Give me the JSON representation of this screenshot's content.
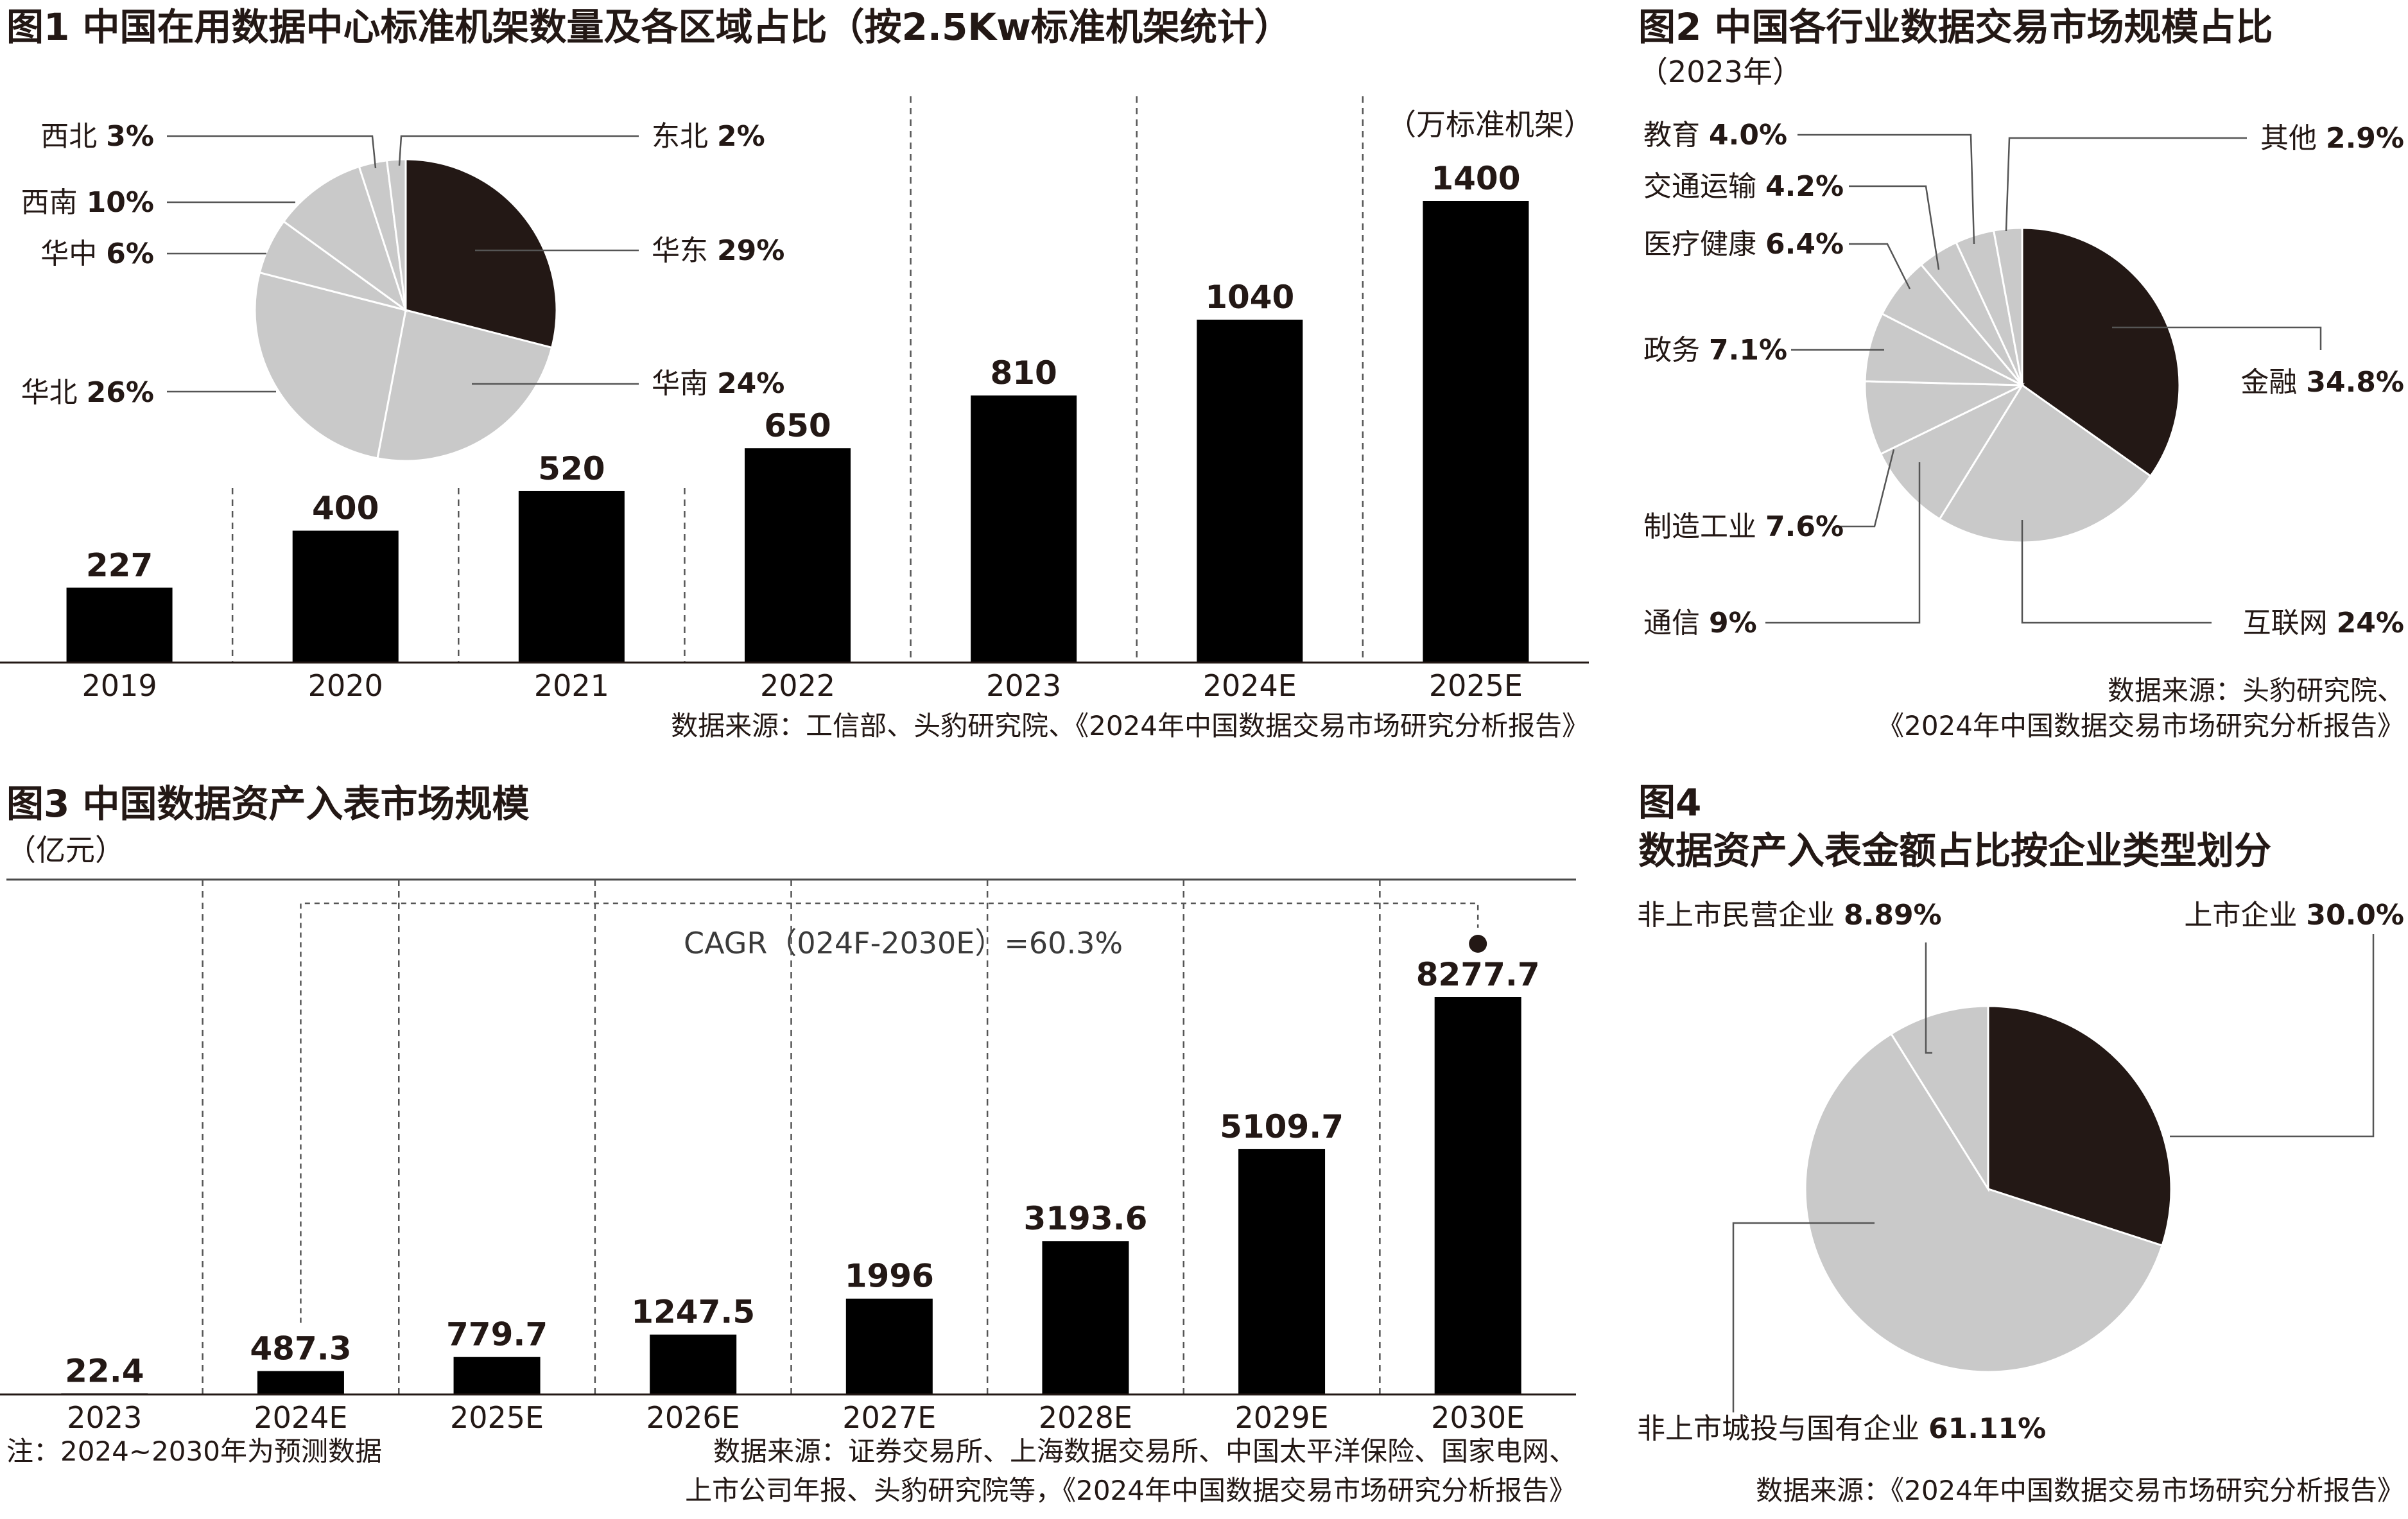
{
  "colors": {
    "dark": "#231815",
    "light": "#c9c9c9",
    "bar": "#000000",
    "line": "#4a4a4a"
  },
  "fig1": {
    "title": "图1 中国在用数据中心标准机架数量及各区域占比（按2.5Kw标准机架统计）",
    "unit": "（万标准机架）",
    "source": "数据来源：工信部、头豹研究院、《2024年中国数据交易市场研究分析报告》"
  },
  "fig2": {
    "title": "图2 中国各行业数据交易市场规模占比",
    "subtitle": "（2023年）",
    "source_line1": "数据来源：头豹研究院、",
    "source_line2": "《2024年中国数据交易市场研究分析报告》"
  },
  "fig3": {
    "title": "图3 中国数据资产入表市场规模",
    "unit": "（亿元）",
    "cagr": "CAGR（024F-2030E）=60.3%",
    "note": "注：2024~2030年为预测数据",
    "source_line1": "数据来源：证券交易所、上海数据交易所、中国太平洋保险、国家电网、",
    "source_line2": "上市公司年报、头豹研究院等，《2024年中国数据交易市场研究分析报告》"
  },
  "fig4": {
    "title_line1": "图4",
    "title_line2": "数据资产入表金额占比按企业类型划分",
    "source": "数据来源：《2024年中国数据交易市场研究分析报告》"
  },
  "chart_data": [
    {
      "type": "bar",
      "title": "图1 中国在用数据中心标准机架数量及各区域占比（按2.5Kw标准机架统计）",
      "ylabel": "（万标准机架）",
      "categories": [
        "2019",
        "2020",
        "2021",
        "2022",
        "2023",
        "2024E",
        "2025E"
      ],
      "values": [
        227,
        400,
        520,
        650,
        810,
        1040,
        1400
      ],
      "labels": [
        "227",
        "400",
        "520",
        "650",
        "810",
        "1040",
        "1400"
      ],
      "ylim": [
        0,
        1400
      ]
    },
    {
      "type": "pie",
      "slices": [
        {
          "name": "华东",
          "pct": "29%",
          "value": 29,
          "color": "dark"
        },
        {
          "name": "华南",
          "pct": "24%",
          "value": 24,
          "color": "light"
        },
        {
          "name": "华北",
          "pct": "26%",
          "value": 26,
          "color": "light"
        },
        {
          "name": "华中",
          "pct": "6%",
          "value": 6,
          "color": "light"
        },
        {
          "name": "西南",
          "pct": "10%",
          "value": 10,
          "color": "light"
        },
        {
          "name": "西北",
          "pct": "3%",
          "value": 3,
          "color": "light"
        },
        {
          "name": "东北",
          "pct": "2%",
          "value": 2,
          "color": "light"
        }
      ]
    },
    {
      "type": "pie",
      "title": "图2 中国各行业数据交易市场规模占比",
      "slices": [
        {
          "name": "金融",
          "pct": "34.8%",
          "value": 34.8,
          "color": "dark"
        },
        {
          "name": "互联网",
          "pct": "24%",
          "value": 24,
          "color": "light"
        },
        {
          "name": "通信",
          "pct": "9%",
          "value": 9,
          "color": "light"
        },
        {
          "name": "制造工业",
          "pct": "7.6%",
          "value": 7.6,
          "color": "light"
        },
        {
          "name": "政务",
          "pct": "7.1%",
          "value": 7.1,
          "color": "light"
        },
        {
          "name": "医疗健康",
          "pct": "6.4%",
          "value": 6.4,
          "color": "light"
        },
        {
          "name": "交通运输",
          "pct": "4.2%",
          "value": 4.2,
          "color": "light"
        },
        {
          "name": "教育",
          "pct": "4.0%",
          "value": 4.0,
          "color": "light"
        },
        {
          "name": "其他",
          "pct": "2.9%",
          "value": 2.9,
          "color": "light"
        }
      ]
    },
    {
      "type": "bar",
      "title": "图3 中国数据资产入表市场规模",
      "ylabel": "（亿元）",
      "categories": [
        "2023",
        "2024E",
        "2025E",
        "2026E",
        "2027E",
        "2028E",
        "2029E",
        "2030E"
      ],
      "values": [
        22.4,
        487.3,
        779.7,
        1247.5,
        1996,
        3193.6,
        5109.7,
        8277.7
      ],
      "labels": [
        "22.4",
        "487.3",
        "779.7",
        "1247.5",
        "1996",
        "3193.6",
        "5109.7",
        "8277.7"
      ],
      "ylim": [
        0,
        8277.7
      ]
    },
    {
      "type": "pie",
      "title": "数据资产入表金额占比按企业类型划分",
      "slices": [
        {
          "name": "上市企业",
          "pct": "30.0%",
          "value": 30.0,
          "color": "dark"
        },
        {
          "name": "非上市城投与国有企业",
          "pct": "61.11%",
          "value": 61.11,
          "color": "light"
        },
        {
          "name": "非上市民营企业",
          "pct": "8.89%",
          "value": 8.89,
          "color": "light"
        }
      ]
    }
  ]
}
